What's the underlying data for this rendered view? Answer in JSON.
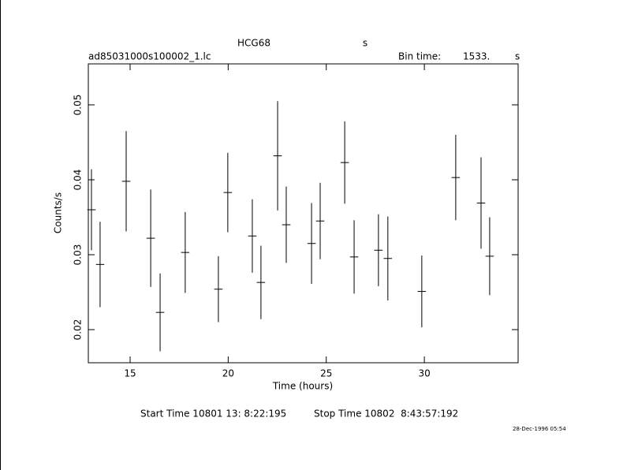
{
  "chart_data": {
    "type": "errorbar",
    "title": "HCG68",
    "title_suffix": "s",
    "filename": "ad85031000s100002_1.lc",
    "bin_time_label": "Bin time:",
    "bin_time": {
      "value": 1533,
      "label": "1533."
    },
    "bin_time_unit": "s",
    "xlabel": "Time (hours)",
    "ylabel": "Counts/s",
    "x": [
      13.03,
      13.47,
      14.8,
      16.05,
      16.53,
      17.81,
      19.5,
      19.98,
      21.23,
      21.67,
      22.52,
      22.96,
      24.25,
      24.69,
      25.94,
      26.42,
      27.66,
      28.14,
      29.87,
      31.6,
      32.89,
      33.33
    ],
    "values": [
      0.036,
      0.0287,
      0.0398,
      0.0322,
      0.0223,
      0.0303,
      0.0254,
      0.0383,
      0.0325,
      0.0263,
      0.0432,
      0.034,
      0.0315,
      0.0345,
      0.0423,
      0.0297,
      0.0306,
      0.0295,
      0.0251,
      0.0403,
      0.0369,
      0.0298
    ],
    "errors": [
      0.0054,
      0.0057,
      0.0067,
      0.0065,
      0.0052,
      0.0054,
      0.0044,
      0.0053,
      0.0049,
      0.0049,
      0.0073,
      0.0051,
      0.0054,
      0.0051,
      0.0055,
      0.0049,
      0.0048,
      0.0056,
      0.0048,
      0.0057,
      0.0061,
      0.0052
    ],
    "color": "#000000",
    "xlim": [
      12.87,
      34.78
    ],
    "xticks": [
      15,
      20,
      25,
      30
    ],
    "ylim": [
      0.01558,
      0.05547
    ],
    "yticks": [
      0.02,
      0.03,
      0.04,
      0.05
    ],
    "start_time": "Start Time 10801 13: 8:22:195",
    "stop_time": "Stop Time 10802  8:43:57:192",
    "date": "28-Dec-1996 05:54"
  }
}
